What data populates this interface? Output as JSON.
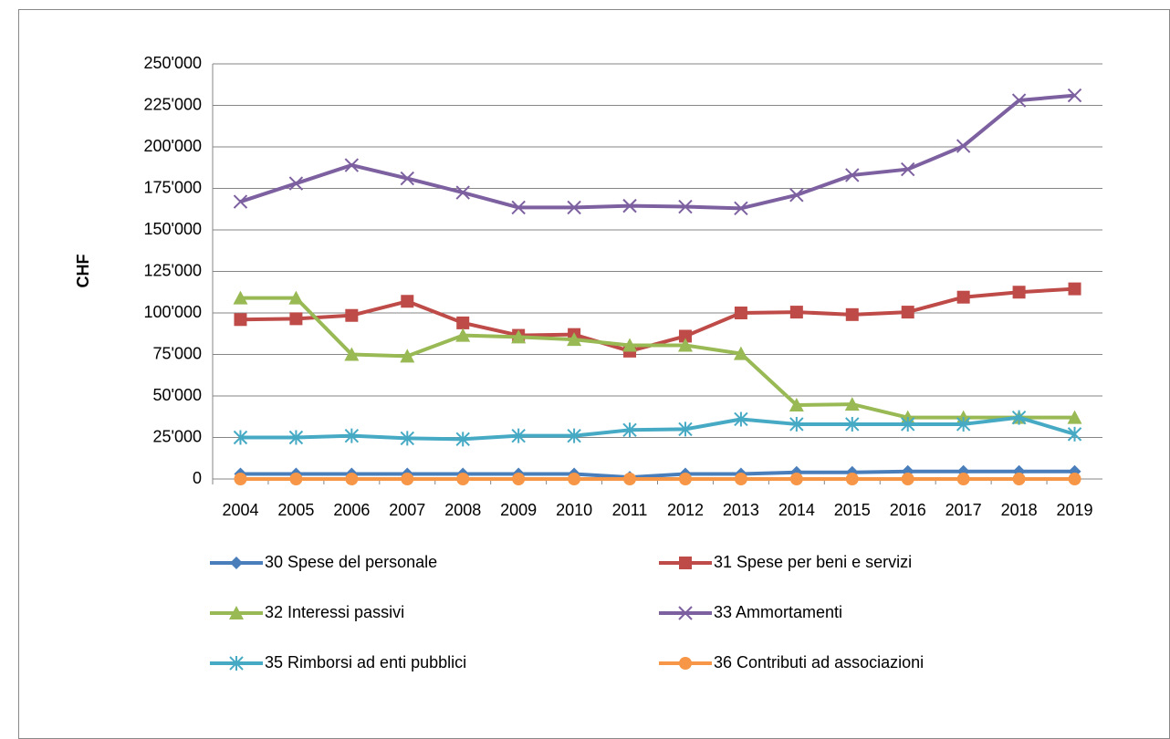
{
  "chart_data": {
    "type": "line",
    "y_label": "CHF",
    "categories": [
      "2004",
      "2005",
      "2006",
      "2007",
      "2008",
      "2009",
      "2010",
      "2011",
      "2012",
      "2013",
      "2014",
      "2015",
      "2016",
      "2017",
      "2018",
      "2019"
    ],
    "ylim": [
      0,
      250000
    ],
    "yticks": [
      0,
      {
        "value": 25000,
        "label": "25'000"
      },
      {
        "value": 50000,
        "label": "50'000"
      },
      {
        "value": 75000,
        "label": "75'000"
      },
      {
        "value": 100000,
        "label": "100'000"
      },
      {
        "value": 125000,
        "label": "125'000"
      },
      {
        "value": 150000,
        "label": "150'000"
      },
      {
        "value": 175000,
        "label": "175'000"
      },
      {
        "value": 200000,
        "label": "200'000"
      },
      {
        "value": 225000,
        "label": "225'000"
      },
      {
        "value": 250000,
        "label": "250'000"
      }
    ],
    "grid": true,
    "legend": "bottom",
    "series": [
      {
        "name": "30 Spese del personale",
        "color": "#4a7ebb",
        "marker": "diamond",
        "values": [
          3000,
          3000,
          3000,
          3000,
          3000,
          3000,
          3000,
          1000,
          3000,
          3000,
          4000,
          4000,
          4500,
          4500,
          4500,
          4500
        ]
      },
      {
        "name": "31 Spese per beni e servizi",
        "color": "#be4b48",
        "marker": "square",
        "values": [
          96000,
          96500,
          98500,
          107000,
          94000,
          86500,
          87000,
          77000,
          86000,
          100000,
          100500,
          99000,
          100500,
          109500,
          112500,
          114500
        ]
      },
      {
        "name": "32 Interessi passivi",
        "color": "#98b954",
        "marker": "triangle",
        "values": [
          109000,
          109000,
          75000,
          74000,
          86500,
          85500,
          84000,
          80500,
          80500,
          75500,
          44500,
          45000,
          37000,
          37000,
          37000,
          37000
        ]
      },
      {
        "name": "33 Ammortamenti",
        "color": "#7d60a0",
        "marker": "x",
        "values": [
          167000,
          178000,
          189000,
          181000,
          172500,
          163500,
          163500,
          164500,
          164000,
          163000,
          171000,
          183000,
          186500,
          200500,
          228000,
          231000
        ]
      },
      {
        "name": "35 Rimborsi ad enti pubblici",
        "color": "#46aac5",
        "marker": "star",
        "values": [
          25000,
          25000,
          26000,
          24500,
          24000,
          26000,
          26000,
          29500,
          30000,
          36000,
          33000,
          33000,
          33000,
          33000,
          37000,
          27000
        ]
      },
      {
        "name": "36 Contributi ad associazioni",
        "color": "#f79646",
        "marker": "circle",
        "values": [
          0,
          0,
          0,
          0,
          0,
          0,
          0,
          0,
          0,
          0,
          0,
          0,
          0,
          0,
          0,
          0
        ]
      }
    ]
  }
}
